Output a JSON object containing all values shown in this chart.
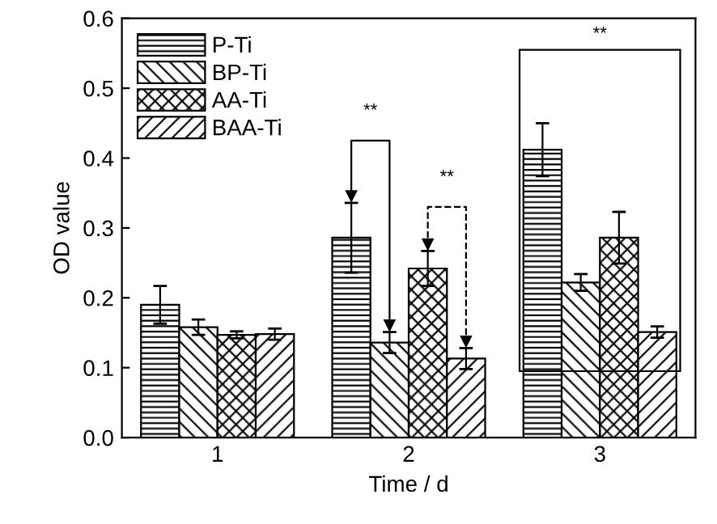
{
  "chart_data": {
    "type": "bar",
    "xlabel": "Time / d",
    "ylabel": "OD value",
    "categories": [
      "1",
      "2",
      "3"
    ],
    "series": [
      {
        "name": "P-Ti",
        "color": "#000000",
        "values": [
          0.19,
          0.286,
          0.412
        ],
        "errors": [
          0.027,
          0.05,
          0.038
        ]
      },
      {
        "name": "BP-Ti",
        "color": "#000000",
        "values": [
          0.158,
          0.136,
          0.222
        ],
        "errors": [
          0.011,
          0.015,
          0.012
        ]
      },
      {
        "name": "AA-Ti",
        "color": "#000000",
        "values": [
          0.147,
          0.242,
          0.286
        ],
        "errors": [
          0.005,
          0.025,
          0.037
        ]
      },
      {
        "name": "BAA-Ti",
        "color": "#000000",
        "values": [
          0.148,
          0.113,
          0.151
        ],
        "errors": [
          0.008,
          0.015,
          0.008
        ]
      }
    ],
    "ylim": [
      0,
      0.6
    ],
    "yticks": [
      {
        "value": 0,
        "label": "0.0"
      },
      {
        "value": 0.1,
        "label": "0.1"
      },
      {
        "value": 0.2,
        "label": "0.2"
      },
      {
        "value": 0.3,
        "label": "0.3"
      },
      {
        "value": 0.4,
        "label": "0.4"
      },
      {
        "value": 0.5,
        "label": "0.5"
      },
      {
        "value": 0.6,
        "label": "0.6"
      }
    ],
    "annotations": [
      "**",
      "**",
      "**"
    ],
    "grid": false,
    "legend": "top left"
  }
}
